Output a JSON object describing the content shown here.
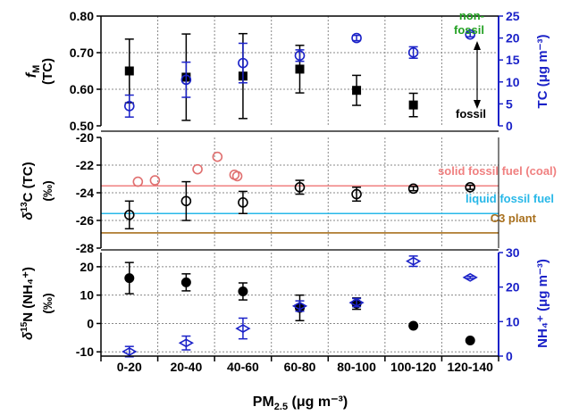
{
  "chart_data": [
    {
      "type": "scatter",
      "panel": "fM",
      "ylabel_main": "f",
      "ylabel_sub": "M",
      "ylabel_line2": "(TC)",
      "y2label": "TC (μg m⁻³)",
      "ylim": [
        0.5,
        0.8
      ],
      "yticks": [
        "0.50",
        "0.60",
        "0.70",
        "0.80"
      ],
      "y2lim": [
        0,
        25
      ],
      "y2ticks": [
        "0",
        "5",
        "10",
        "15",
        "20",
        "25"
      ],
      "annotation_top": "non-fossil",
      "annotation_bottom": "fossil",
      "colors": {
        "primary": "#000000",
        "secondary": "#1b22c8",
        "nonfossil": "#22a022"
      },
      "series": [
        {
          "name": "fM",
          "marker": "filled-square",
          "axis": "left",
          "values": [
            0.65,
            0.633,
            0.636,
            0.655,
            0.597,
            0.557,
            null
          ],
          "err": [
            0.087,
            0.118,
            0.116,
            0.065,
            0.041,
            0.032,
            null
          ]
        },
        {
          "name": "TC",
          "marker": "open-circle",
          "axis": "right",
          "values": [
            4.5,
            10.5,
            14.3,
            16.0,
            20.0,
            16.7,
            20.8
          ],
          "err": [
            2.5,
            4.0,
            4.5,
            1.3,
            0.6,
            1.3,
            0.5
          ]
        }
      ]
    },
    {
      "type": "scatter",
      "panel": "d13C",
      "ylabel_main": "δ",
      "ylabel_sup": "13",
      "ylabel_rest": "C (TC)",
      "ylabel_line2": "(‰)",
      "ylim": [
        -28,
        -20
      ],
      "yticks": [
        "-28",
        "-26",
        "-24",
        "-22",
        "-20"
      ],
      "reference_lines": [
        {
          "name": "solid fossil fuel (coal)",
          "value": -23.5,
          "color": "#f08080"
        },
        {
          "name": "liquid fossil fuel",
          "value": -25.5,
          "color": "#28b8e8"
        },
        {
          "name": "C3 plant",
          "value": -26.9,
          "color": "#a8701e"
        }
      ],
      "series": [
        {
          "name": "d13C",
          "marker": "open-circle",
          "color": "#000000",
          "values": [
            -25.6,
            -24.6,
            -24.7,
            -23.6,
            -24.1,
            -23.7,
            -23.6
          ],
          "err": [
            1.0,
            1.4,
            0.8,
            0.5,
            0.5,
            0.15,
            0.15
          ]
        },
        {
          "name": "d13C-extra",
          "marker": "open-circle",
          "color": "#e07070",
          "x_offsets": [
            0.15,
            0.45,
            0.2,
            0.55,
            0.85,
            -0.1
          ],
          "x_bins": [
            0,
            0,
            1,
            1,
            1,
            2
          ],
          "values": [
            -23.2,
            -23.1,
            -22.3,
            -21.4,
            -22.7,
            -22.8
          ]
        }
      ]
    },
    {
      "type": "scatter",
      "panel": "d15N",
      "ylabel_main": "δ",
      "ylabel_sup": "15",
      "ylabel_rest": "N (NH₄⁺)",
      "ylabel_line2": "(‰)",
      "y2label": "NH₄⁺ (μg m⁻³)",
      "ylim": [
        -11.5,
        25
      ],
      "yticks": [
        "-10",
        "0",
        "10",
        "20"
      ],
      "y2lim": [
        0,
        30
      ],
      "y2ticks": [
        "0",
        "10",
        "20",
        "30"
      ],
      "series": [
        {
          "name": "d15N",
          "marker": "filled-circle",
          "axis": "left",
          "values": [
            16.0,
            14.5,
            11.3,
            5.5,
            7.0,
            -0.8,
            -6.0
          ],
          "err": [
            5.5,
            3.0,
            3.0,
            4.5,
            2.0,
            0,
            0
          ]
        },
        {
          "name": "NH4",
          "marker": "open-diamond",
          "axis": "right",
          "values": [
            1.3,
            3.8,
            8.0,
            14.5,
            15.5,
            27.5,
            22.8
          ],
          "err": [
            1.5,
            2.0,
            3.0,
            1.5,
            1.2,
            1.5,
            0.3
          ]
        }
      ]
    }
  ],
  "x_axis": {
    "categories": [
      "0-20",
      "20-40",
      "40-60",
      "60-80",
      "80-100",
      "100-120",
      "120-140"
    ],
    "xlabel_main": "PM",
    "xlabel_sub": "2.5",
    "xlabel_rest": " (μg m⁻³)"
  }
}
